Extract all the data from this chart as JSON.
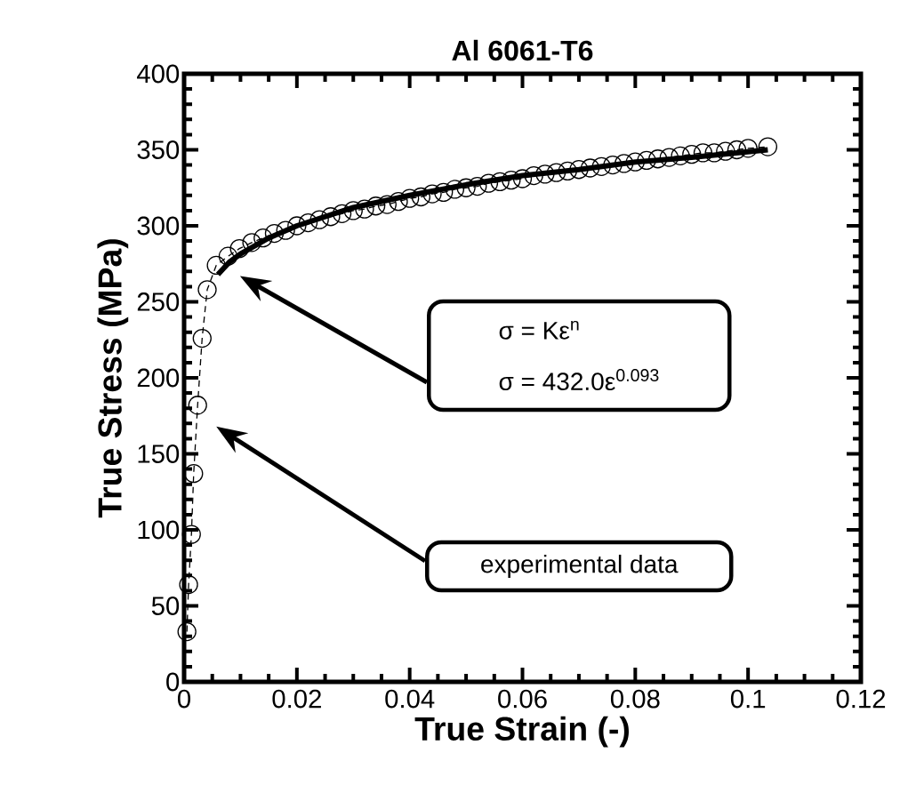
{
  "chart_data": {
    "type": "line",
    "title": "Al 6061-T6",
    "xlabel": "True Strain (-)",
    "ylabel": "True Stress (MPa)",
    "xlim": [
      0,
      0.12
    ],
    "ylim": [
      0,
      400
    ],
    "xticks": [
      0,
      0.02,
      0.04,
      0.06,
      0.08,
      0.1,
      0.12
    ],
    "yticks": [
      0,
      50,
      100,
      150,
      200,
      250,
      300,
      350,
      400
    ],
    "series": [
      {
        "marker": "none",
        "line_style": "solid",
        "color": "#000000",
        "x": [
          0.006,
          0.008,
          0.01,
          0.015,
          0.02,
          0.03,
          0.04,
          0.05,
          0.06,
          0.07,
          0.08,
          0.09,
          0.1035
        ],
        "values": [
          268,
          276,
          281.5,
          292,
          300,
          312,
          320,
          327,
          333,
          337,
          342,
          345,
          350
        ]
      },
      {
        "marker": "circle",
        "line_style": "dashed",
        "color": "#000000",
        "x": [
          0.0005,
          0.0008,
          0.0013,
          0.0017,
          0.0024,
          0.0032,
          0.0041,
          0.0057,
          0.0078,
          0.0098,
          0.012,
          0.014,
          0.016,
          0.018,
          0.02,
          0.022,
          0.024,
          0.026,
          0.028,
          0.03,
          0.032,
          0.034,
          0.036,
          0.038,
          0.04,
          0.042,
          0.044,
          0.046,
          0.048,
          0.05,
          0.052,
          0.054,
          0.056,
          0.058,
          0.06,
          0.062,
          0.064,
          0.066,
          0.068,
          0.07,
          0.072,
          0.074,
          0.076,
          0.078,
          0.08,
          0.082,
          0.084,
          0.086,
          0.088,
          0.09,
          0.092,
          0.094,
          0.096,
          0.098,
          0.1,
          0.1035
        ],
        "values": [
          33,
          64,
          97,
          137,
          182,
          226,
          258,
          274,
          280,
          285,
          289,
          292,
          295,
          297,
          300,
          302,
          304,
          306,
          308,
          310,
          311,
          313,
          314,
          316,
          318,
          319,
          321,
          322,
          324,
          325,
          326,
          328,
          329,
          330,
          331,
          333,
          334,
          335,
          336,
          337,
          338,
          339,
          340,
          341,
          342,
          343,
          344,
          345,
          346,
          347,
          348,
          348,
          349,
          350,
          351,
          352
        ]
      }
    ],
    "annotations": [
      "σ = Kε$^{n}$",
      "σ = 432.0ε$^{0.093}$",
      "experimental data"
    ]
  }
}
